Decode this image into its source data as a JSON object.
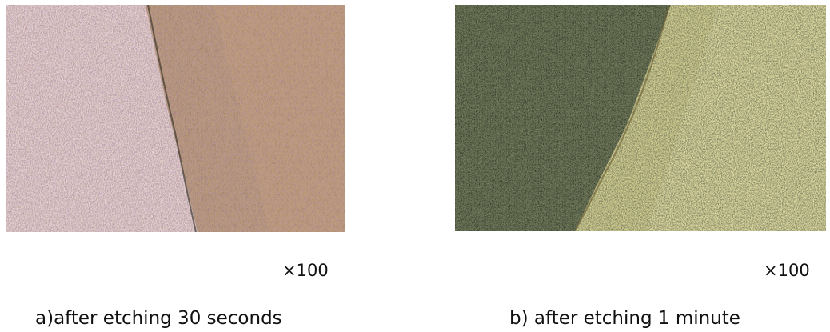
{
  "figures": [
    {
      "magnification": "×100",
      "caption": "a)after etching 30 seconds",
      "palette": {
        "light": "#e8dcec",
        "dark": "#7a5a3c",
        "speck": "#5a3a50"
      }
    },
    {
      "magnification": "×100",
      "caption": "b) after etching 1 minute",
      "palette": {
        "light": "#e6dc9c",
        "dark": "#253026",
        "speck": "#3a3222"
      }
    }
  ]
}
